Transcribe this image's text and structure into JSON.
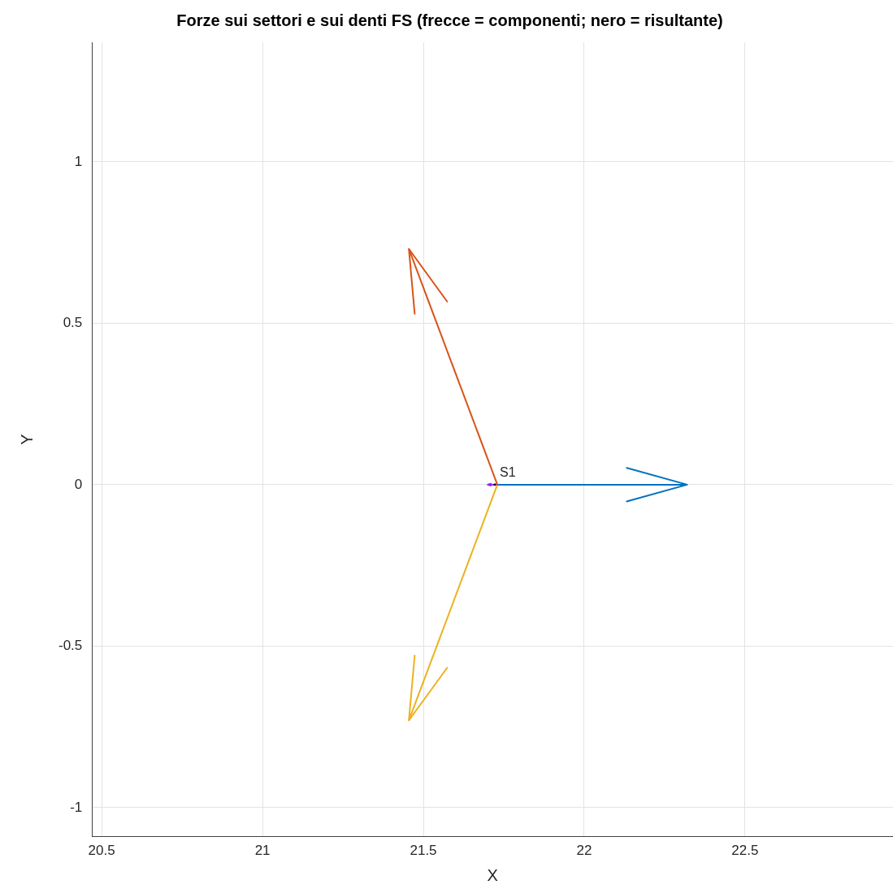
{
  "chart_data": {
    "type": "line",
    "title": "Forze sui settori e sui denti FS (frecce = componenti; nero = risultante)",
    "xlabel": "X",
    "ylabel": "Y",
    "series": [
      {
        "color": "#0072bd",
        "x": [
          21.73,
          22.32
        ],
        "values": [
          0,
          0
        ]
      },
      {
        "color": "#d95319",
        "x": [
          21.73,
          21.455
        ],
        "values": [
          0,
          0.73
        ]
      },
      {
        "color": "#edb120",
        "x": [
          21.73,
          21.455
        ],
        "values": [
          0,
          -0.73
        ]
      },
      {
        "color": "#a020f0",
        "x": [
          21.73,
          21.7
        ],
        "values": [
          0,
          0
        ]
      },
      {
        "color": "#000000",
        "x": [
          21.73,
          21.72
        ],
        "values": [
          0,
          0
        ]
      }
    ],
    "annotations": [
      {
        "text": "S1",
        "x": 21.73,
        "y": 0
      }
    ],
    "xlim": [
      20.47,
      22.96
    ],
    "ylim": [
      -1.09,
      1.37
    ],
    "xticks": [
      20.5,
      21,
      21.5,
      22,
      22.5
    ],
    "yticks": [
      -1,
      -0.5,
      0,
      0.5,
      1
    ],
    "grid": true,
    "legend": false,
    "line_style": "solid"
  }
}
